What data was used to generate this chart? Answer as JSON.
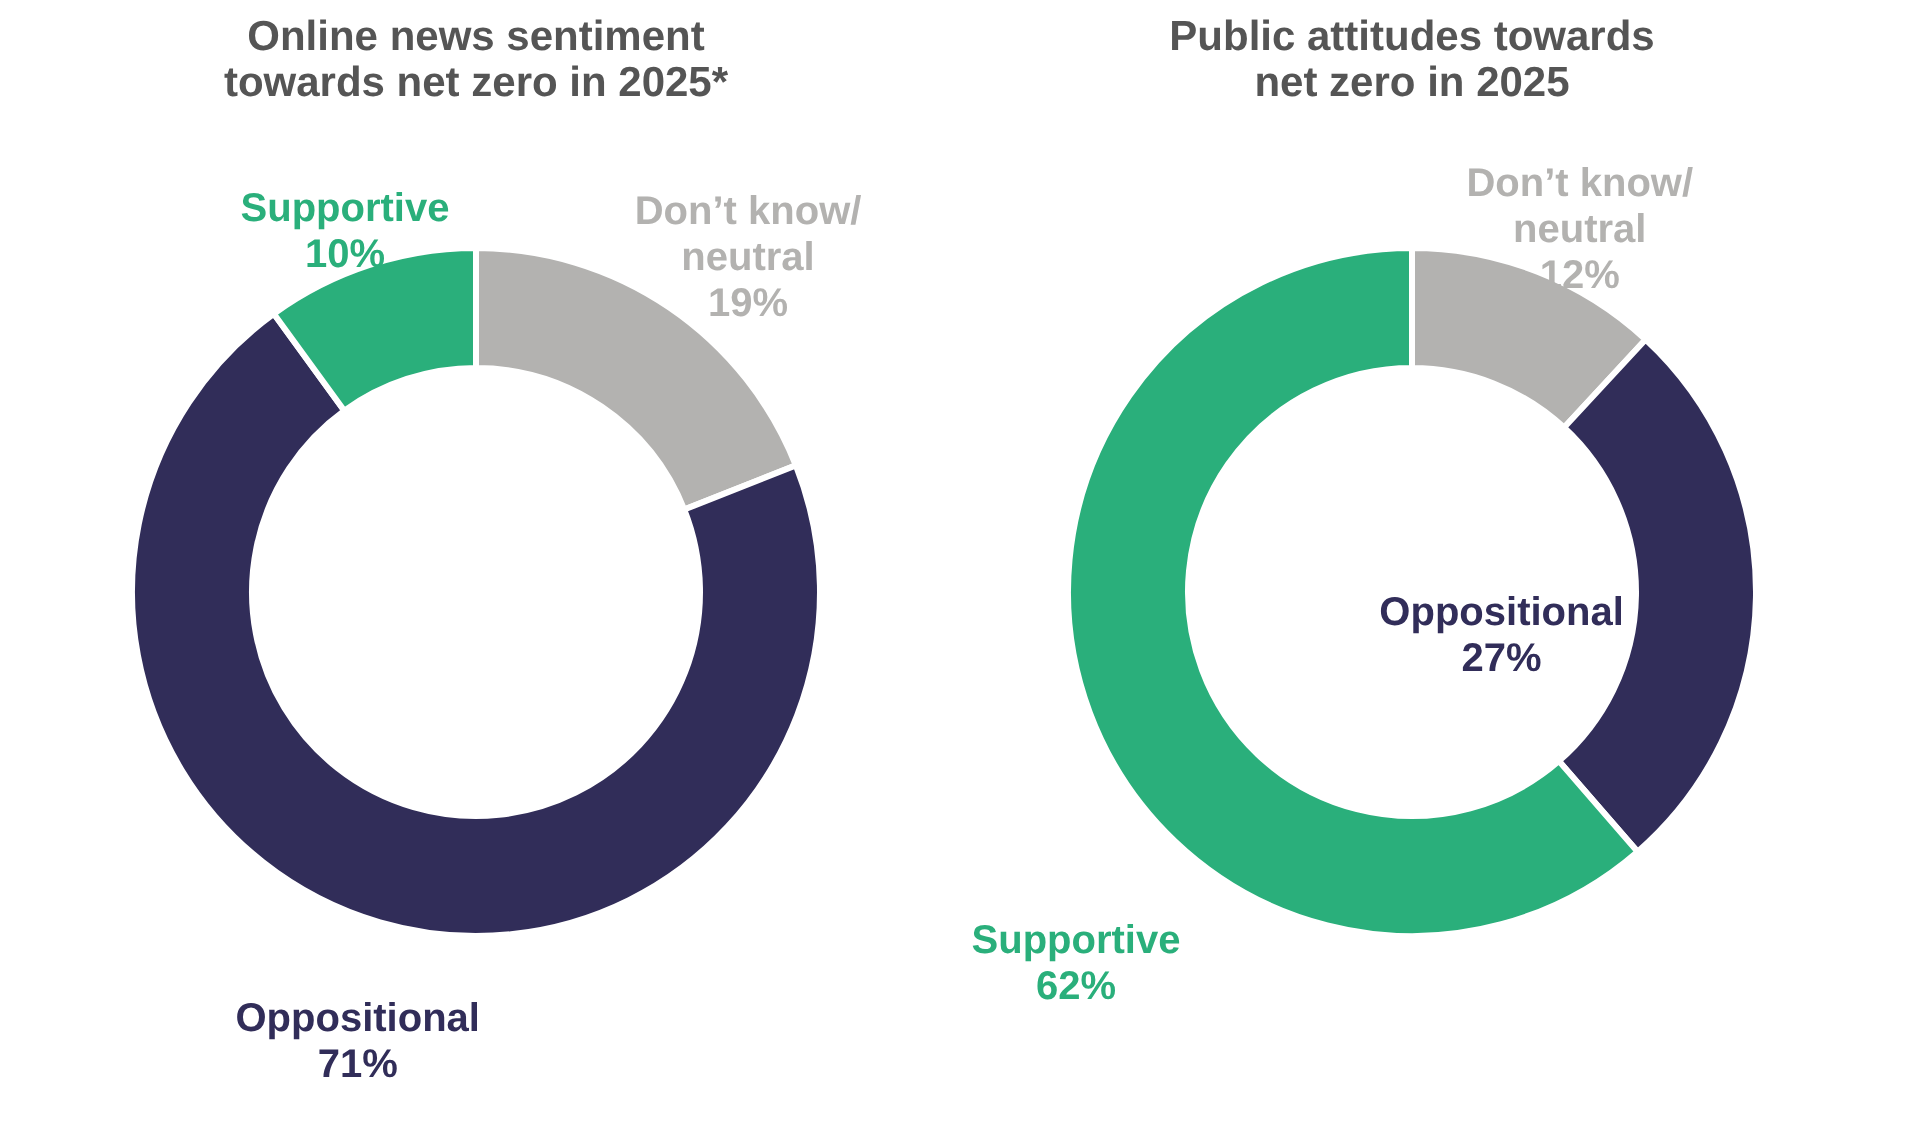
{
  "chart_data": [
    {
      "type": "donut",
      "title": "Online news sentiment towards net zero in 2025*",
      "categories": [
        "Don’t know/neutral",
        "Oppositional",
        "Supportive"
      ],
      "values": [
        19,
        71,
        10
      ],
      "colors": [
        "#b3b2b0",
        "#312d59",
        "#2aaf7b"
      ],
      "value_labels": [
        "19%",
        "71%",
        "10%"
      ]
    },
    {
      "type": "donut",
      "title": "Public attitudes towards net zero in 2025",
      "categories": [
        "Don’t know/neutral",
        "Oppositional",
        "Supportive"
      ],
      "values": [
        12,
        27,
        62
      ],
      "colors": [
        "#b3b2b0",
        "#312d59",
        "#2aaf7b"
      ],
      "value_labels": [
        "12%",
        "27%",
        "62%"
      ]
    }
  ]
}
